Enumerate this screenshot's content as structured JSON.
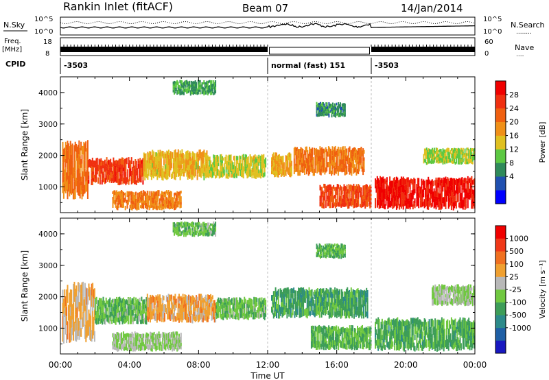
{
  "header": {
    "station": "Rankin Inlet (fitACF)",
    "beam": "Beam 07",
    "date": "14/Jan/2014"
  },
  "strip_nsky": {
    "left_label": "N.Sky",
    "right_label": "N.Search",
    "right_legend_dots": "........",
    "tick_top": "10^5",
    "tick_bottom": "10^0"
  },
  "strip_freq": {
    "left_label_1": "Freq.",
    "left_label_2": "[MHz]",
    "tick_top": "18",
    "tick_bottom": "8",
    "right_tick_top": "60",
    "right_tick_bottom": "0",
    "right_label": "Nave",
    "right_legend_dots": "...."
  },
  "cpid": {
    "label": "CPID",
    "segments": [
      {
        "label": "-3503",
        "start_h": 0,
        "end_h": 12
      },
      {
        "label": "normal (fast) 151",
        "start_h": 12,
        "end_h": 18
      },
      {
        "label": "-3503",
        "start_h": 18,
        "end_h": 24
      }
    ]
  },
  "power_panel": {
    "ylabel": "Slant Range [km]",
    "yticks": [
      "1000",
      "2000",
      "3000",
      "4000"
    ],
    "colorbar_label": "Power [dB]",
    "colorbar_ticks": [
      "28",
      "24",
      "20",
      "16",
      "12",
      "8",
      "4"
    ],
    "colors": [
      "#0000ff",
      "#2050b0",
      "#2f8a5a",
      "#5cc842",
      "#e0c020",
      "#f09018",
      "#f06010",
      "#f03010",
      "#f00000"
    ]
  },
  "velocity_panel": {
    "ylabel": "Slant Range [km]",
    "yticks": [
      "1000",
      "2000",
      "3000",
      "4000"
    ],
    "colorbar_label": "Velocity [m s⁻¹]",
    "colorbar_ticks": [
      "1000",
      "500",
      "100",
      "25",
      "-25",
      "-100",
      "-500",
      "-1000"
    ],
    "colors": [
      "#1818c0",
      "#1f5fa5",
      "#2c8a8a",
      "#3d9d58",
      "#70c840",
      "#b8b8b8",
      "#f0a030",
      "#f07020",
      "#f03818",
      "#f00000"
    ]
  },
  "x_axis": {
    "label": "Time UT",
    "ticks": [
      "00:00",
      "04:00",
      "08:00",
      "12:00",
      "16:00",
      "20:00",
      "00:00"
    ]
  },
  "chart_data": {
    "type": "heatmap",
    "title": "Rankin Inlet (fitACF)",
    "x": {
      "label": "Time UT",
      "range_hours": [
        0,
        24
      ]
    },
    "y": {
      "label": "Slant Range [km]",
      "range_km": [
        180,
        4500
      ]
    },
    "panels": [
      {
        "name": "Power [dB]",
        "vrange": [
          0,
          32
        ],
        "regions": [
          {
            "t0": 0.1,
            "t1": 1.6,
            "r0": 600,
            "r1": 2500,
            "v": 22
          },
          {
            "t0": 1.6,
            "t1": 4.8,
            "r0": 1050,
            "r1": 1950,
            "v": 26
          },
          {
            "t0": 4.8,
            "t1": 8.5,
            "r0": 1200,
            "r1": 2200,
            "v": 17
          },
          {
            "t0": 8.5,
            "t1": 11.9,
            "r0": 1250,
            "r1": 2050,
            "v": 15
          },
          {
            "t0": 3.0,
            "t1": 7.0,
            "r0": 250,
            "r1": 900,
            "v": 21
          },
          {
            "t0": 12.2,
            "t1": 13.4,
            "r0": 1300,
            "r1": 2100,
            "v": 18
          },
          {
            "t0": 13.5,
            "t1": 17.6,
            "r0": 1350,
            "r1": 2300,
            "v": 22
          },
          {
            "t0": 15.0,
            "t1": 18.0,
            "r0": 300,
            "r1": 1100,
            "v": 25
          },
          {
            "t0": 18.2,
            "t1": 24.0,
            "r0": 250,
            "r1": 1350,
            "v": 29
          },
          {
            "t0": 21.0,
            "t1": 24.0,
            "r0": 1700,
            "r1": 2250,
            "v": 14
          },
          {
            "t0": 6.5,
            "t1": 9.0,
            "r0": 3900,
            "r1": 4400,
            "v": 10
          },
          {
            "t0": 14.8,
            "t1": 16.5,
            "r0": 3200,
            "r1": 3700,
            "v": 9
          }
        ]
      },
      {
        "name": "Velocity [m s⁻¹]",
        "vrange": [
          -1000,
          1000
        ],
        "regions": [
          {
            "t0": 0.1,
            "t1": 2.0,
            "r0": 500,
            "r1": 2500,
            "v": 250
          },
          {
            "t0": 2.0,
            "t1": 5.0,
            "r0": 1100,
            "r1": 2000,
            "v": -150
          },
          {
            "t0": 5.0,
            "t1": 9.0,
            "r0": 1150,
            "r1": 2100,
            "v": 300
          },
          {
            "t0": 9.0,
            "t1": 11.9,
            "r0": 1250,
            "r1": 2000,
            "v": -150
          },
          {
            "t0": 3.0,
            "t1": 7.0,
            "r0": 250,
            "r1": 900,
            "v": 0
          },
          {
            "t0": 12.2,
            "t1": 17.8,
            "r0": 1300,
            "r1": 2300,
            "v": -300
          },
          {
            "t0": 14.5,
            "t1": 18.0,
            "r0": 300,
            "r1": 1100,
            "v": -200
          },
          {
            "t0": 18.2,
            "t1": 24.0,
            "r0": 250,
            "r1": 1350,
            "v": -250
          },
          {
            "t0": 21.5,
            "t1": 24.0,
            "r0": 1700,
            "r1": 2400,
            "v": 0
          },
          {
            "t0": 6.5,
            "t1": 9.0,
            "r0": 3900,
            "r1": 4400,
            "v": -150
          },
          {
            "t0": 14.8,
            "t1": 16.5,
            "r0": 3200,
            "r1": 3700,
            "v": -200
          }
        ]
      }
    ]
  }
}
